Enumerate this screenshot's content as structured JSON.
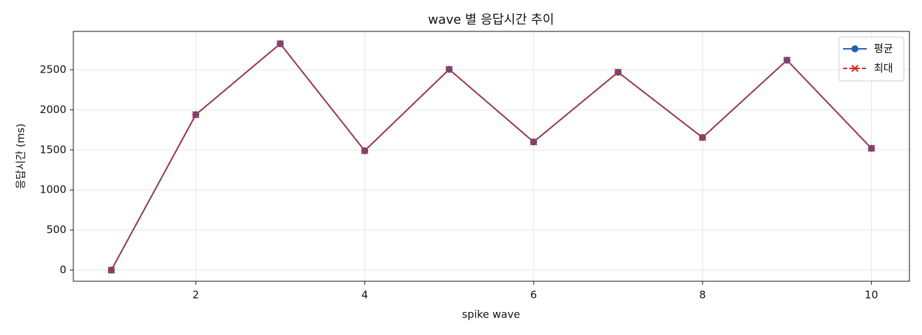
{
  "chart_data": {
    "type": "line",
    "title": "wave 별 응답시간 추이",
    "x_label": "spike wave",
    "y_label": "응답시간 (ms)",
    "x": [
      1,
      2,
      3,
      4,
      5,
      6,
      7,
      8,
      9,
      10
    ],
    "series": [
      {
        "name": "평균",
        "color": "#1f5fb4",
        "marker": "o",
        "dash": false,
        "values": [
          0,
          1940,
          2825,
          1490,
          2505,
          1600,
          2470,
          1655,
          2620,
          1520
        ]
      },
      {
        "name": "최대",
        "color": "#d62728",
        "marker": "x",
        "dash": true,
        "values": [
          0,
          1940,
          2825,
          1490,
          2505,
          1600,
          2470,
          1655,
          2620,
          1520
        ]
      }
    ],
    "xlim": [
      0.55,
      10.45
    ],
    "ylim": [
      -139,
      2979
    ],
    "xticks": [
      2,
      4,
      6,
      8,
      10
    ],
    "yticks": [
      0,
      500,
      1000,
      1500,
      2000,
      2500
    ],
    "grid": true,
    "legend": "upper right"
  }
}
